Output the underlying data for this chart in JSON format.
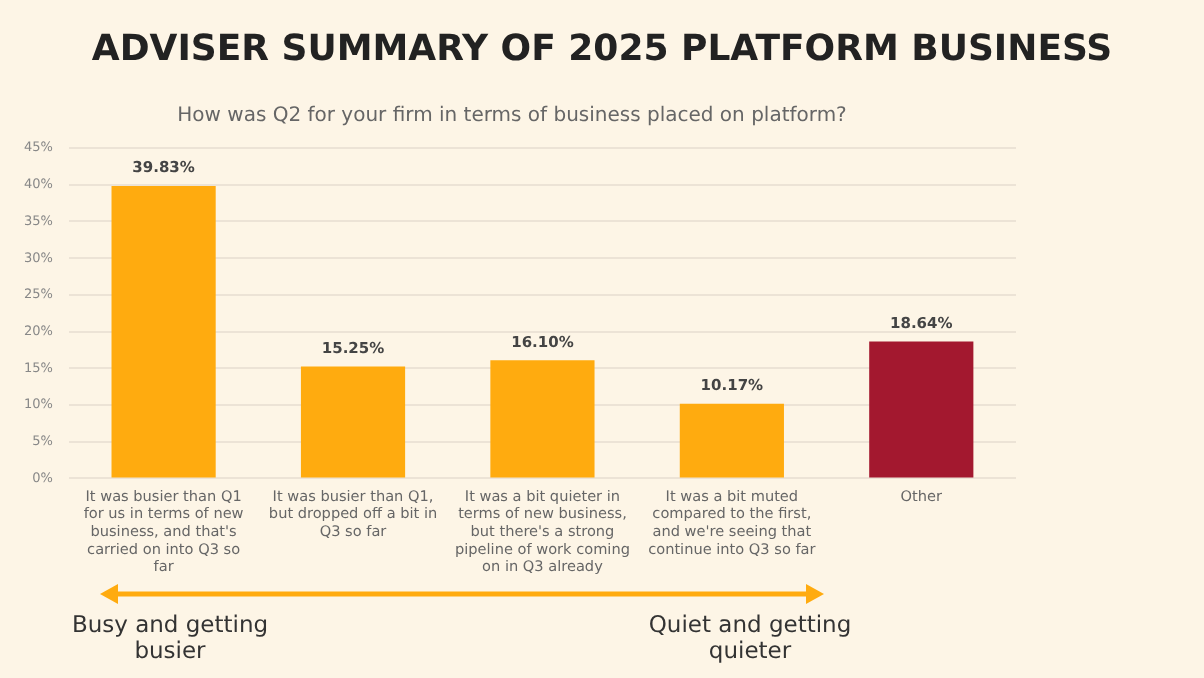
{
  "chart_data": {
    "type": "bar",
    "title": "ADVISER SUMMARY OF 2025 PLATFORM BUSINESS",
    "subtitle": "How was Q2 for your firm in terms of business placed on platform?",
    "categories": [
      "It was busier than Q1 for us in terms of new business, and that's carried on into Q3 so far",
      "It was busier than Q1, but dropped off a bit in Q3 so far",
      "It was a bit quieter in terms of new business, but there's a strong pipeline of work coming on in Q3 already",
      "It was a bit muted compared to the first, and we're seeing that continue into Q3 so far",
      "Other"
    ],
    "values": [
      39.83,
      15.25,
      16.1,
      10.17,
      18.64
    ],
    "colors": [
      "#ffab0f",
      "#ffab0f",
      "#ffab0f",
      "#ffab0f",
      "#a3182f"
    ],
    "value_labels": [
      "39.83%",
      "15.25%",
      "16.10%",
      "10.17%",
      "18.64%"
    ],
    "ylim": [
      0,
      45
    ],
    "yticks": [
      {
        "value": 0,
        "label": "0%"
      },
      {
        "value": 5,
        "label": "5%"
      },
      {
        "value": 10,
        "label": "10%"
      },
      {
        "value": 15,
        "label": "15%"
      },
      {
        "value": 20,
        "label": "20%"
      },
      {
        "value": 25,
        "label": "25%"
      },
      {
        "value": 30,
        "label": "30%"
      },
      {
        "value": 35,
        "label": "35%"
      },
      {
        "value": 40,
        "label": "40%"
      },
      {
        "value": 45,
        "label": "45%"
      }
    ],
    "grid": "y",
    "legend": false,
    "annotations": [
      "Busy and getting busier",
      "Quiet and getting quieter"
    ]
  }
}
